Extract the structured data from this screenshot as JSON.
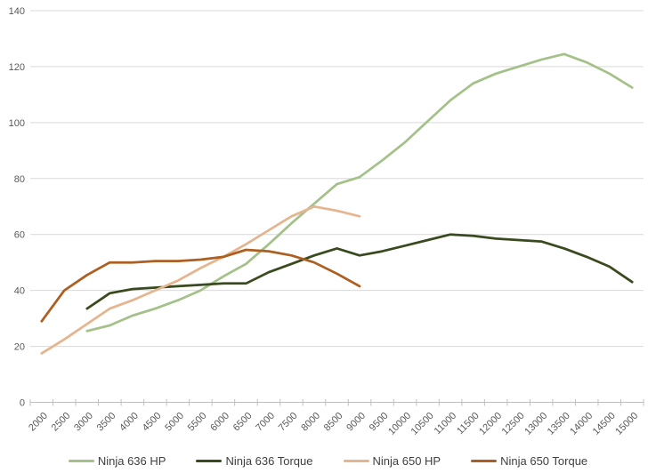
{
  "chart_data": {
    "type": "line",
    "title": "",
    "xlabel": "",
    "ylabel": "",
    "ylim": [
      0,
      140
    ],
    "y_ticks": [
      0,
      20,
      40,
      60,
      80,
      100,
      120,
      140
    ],
    "grid": "horizontal",
    "legend_position": "bottom",
    "categories": [
      2000,
      2500,
      3000,
      3500,
      4000,
      4500,
      5000,
      5500,
      6000,
      6500,
      7000,
      7500,
      8000,
      8500,
      9000,
      9500,
      10000,
      10500,
      11000,
      11500,
      12000,
      12500,
      13000,
      13500,
      14000,
      14500,
      15000
    ],
    "series": [
      {
        "name": "Ninja 636 HP",
        "color": "#a4c18a",
        "values": [
          null,
          null,
          25.5,
          27.5,
          31,
          33.5,
          36.5,
          40,
          45,
          49.5,
          56.5,
          64,
          71,
          78,
          80.5,
          86.5,
          93,
          100.5,
          108,
          114,
          117.5,
          120,
          122.5,
          124.5,
          121.5,
          117.5,
          112.5
        ]
      },
      {
        "name": "Ninja 636 Torque",
        "color": "#3a4a1f",
        "values": [
          null,
          null,
          33.5,
          39,
          40.5,
          41,
          41.5,
          42,
          42.5,
          42.5,
          46.5,
          49.5,
          52.5,
          55,
          52.5,
          54,
          56,
          58,
          60,
          59.5,
          58.5,
          58,
          57.5,
          55,
          52,
          48.5,
          43
        ]
      },
      {
        "name": "Ninja 650 HP",
        "color": "#e4b58e",
        "values": [
          17.5,
          22.5,
          28,
          33.5,
          36.5,
          40,
          43.5,
          48,
          52,
          56.5,
          61.5,
          66.5,
          70,
          68.5,
          66.5,
          null,
          null,
          null,
          null,
          null,
          null,
          null,
          null,
          null,
          null,
          null,
          null
        ]
      },
      {
        "name": "Ninja 650 Torque",
        "color": "#ac5f21",
        "values": [
          29,
          40,
          45.5,
          50,
          50,
          50.5,
          50.5,
          51,
          52,
          54.5,
          54,
          52.5,
          50,
          46,
          41.5,
          null,
          null,
          null,
          null,
          null,
          null,
          null,
          null,
          null,
          null,
          null,
          null
        ]
      }
    ]
  }
}
